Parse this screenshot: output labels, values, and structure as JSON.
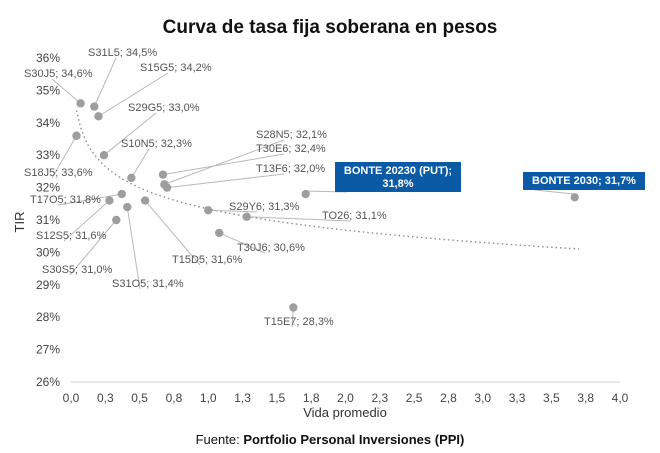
{
  "chart_data": {
    "type": "scatter",
    "title": "Curva de tasa fija soberana en pesos",
    "xlabel": "Vida promedio",
    "ylabel": "TIR",
    "xlim": [
      0,
      4
    ],
    "ylim": [
      26,
      36
    ],
    "x_ticks": [
      "0,0",
      "0,3",
      "0,5",
      "0,8",
      "1,0",
      "1,3",
      "1,5",
      "1,8",
      "2,0",
      "2,3",
      "2,5",
      "2,8",
      "3,0",
      "3,3",
      "3,5",
      "3,8",
      "4,0"
    ],
    "y_ticks": [
      "26%",
      "27%",
      "28%",
      "29%",
      "30%",
      "31%",
      "32%",
      "33%",
      "34%",
      "35%",
      "36%"
    ],
    "grid": false,
    "trendline": "logarithmic (dotted)",
    "source_prefix": "Fuente: ",
    "source_bold": "Portfolio Personal Inversiones (PPI)",
    "points": [
      {
        "label": "S31L5; 34,5%",
        "x": 0.17,
        "y": 34.5
      },
      {
        "label": "S30J5; 34,6%",
        "x": 0.07,
        "y": 34.6
      },
      {
        "label": "S15G5; 34,2%",
        "x": 0.2,
        "y": 34.2
      },
      {
        "label": "S18J5; 33,6%",
        "x": 0.04,
        "y": 33.6
      },
      {
        "label": "S29G5; 33,0%",
        "x": 0.24,
        "y": 33.0
      },
      {
        "label": "S10N5; 32,3%",
        "x": 0.44,
        "y": 32.3
      },
      {
        "label": "S28N5; 32,1%",
        "x": 0.68,
        "y": 32.1
      },
      {
        "label": "T30E6; 32,4%",
        "x": 0.67,
        "y": 32.4
      },
      {
        "label": "T13F6; 32,0%",
        "x": 0.7,
        "y": 32.0
      },
      {
        "label": "BONTE 20230 (PUT); 31,8%",
        "x": 1.71,
        "y": 31.8,
        "highlight": true
      },
      {
        "label": "BONTE 2030; 31,7%",
        "x": 3.67,
        "y": 31.7,
        "highlight": true
      },
      {
        "label": "T17O5; 31,8%",
        "x": 0.37,
        "y": 31.8
      },
      {
        "label": "S12S5; 31,6%",
        "x": 0.28,
        "y": 31.6
      },
      {
        "label": "S29Y6; 31,3%",
        "x": 1.0,
        "y": 31.3
      },
      {
        "label": "TO26; 31,1%",
        "x": 1.28,
        "y": 31.1
      },
      {
        "label": "S30S5; 31,0%",
        "x": 0.33,
        "y": 31.0
      },
      {
        "label": "T15D5; 31,6%",
        "x": 0.54,
        "y": 31.6
      },
      {
        "label": "T30J6; 30,6%",
        "x": 1.08,
        "y": 30.6
      },
      {
        "label": "S31O5; 31,4%",
        "x": 0.41,
        "y": 31.4
      },
      {
        "label": "T15E7; 28,3%",
        "x": 1.62,
        "y": 28.3
      }
    ]
  }
}
